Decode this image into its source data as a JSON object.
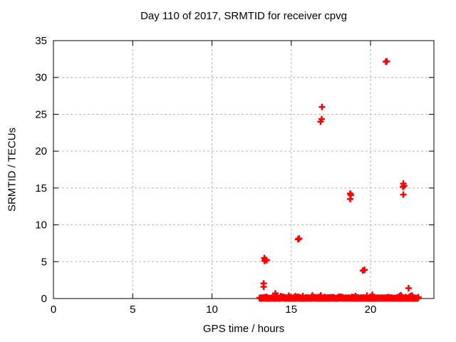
{
  "figure": {
    "background": "#ffffff"
  },
  "chart_data": {
    "type": "scatter",
    "title": "Day 110 of 2017, SRMTID for receiver cpvg",
    "xlabel": "GPS time / hours",
    "ylabel": "SRMTID / TECUs",
    "xlim": [
      0,
      24
    ],
    "ylim": [
      0,
      35
    ],
    "xticks": [
      0,
      5,
      10,
      15,
      20
    ],
    "yticks": [
      0,
      5,
      10,
      15,
      20,
      25,
      30,
      35
    ],
    "grid": true,
    "legend": "none",
    "colors": {
      "marker": "#ff0000",
      "grid": "#b4b4b4",
      "frame": "#000000",
      "text": "#000000"
    },
    "marker": {
      "shape": "plus",
      "size": 9,
      "stroke_width": 2.5
    },
    "points": [
      [
        13.3,
        5.5
      ],
      [
        13.35,
        5.3
      ],
      [
        13.45,
        5.2
      ],
      [
        13.32,
        5.1
      ],
      [
        13.26,
        2.05
      ],
      [
        13.26,
        1.6
      ],
      [
        14.0,
        0.7
      ],
      [
        15.43,
        8.05
      ],
      [
        15.5,
        8.15
      ],
      [
        16.94,
        26.0
      ],
      [
        16.85,
        24.0
      ],
      [
        16.92,
        24.35
      ],
      [
        18.72,
        14.25
      ],
      [
        18.76,
        14.05
      ],
      [
        18.72,
        13.5
      ],
      [
        19.52,
        3.8
      ],
      [
        19.62,
        3.9
      ],
      [
        20.97,
        32.15
      ],
      [
        21.03,
        32.2
      ],
      [
        22.07,
        15.6
      ],
      [
        22.12,
        15.3
      ],
      [
        22.05,
        15.15
      ],
      [
        22.07,
        14.1
      ],
      [
        22.4,
        1.4
      ]
    ],
    "baseline_band": {
      "description": "dense strip of measurements hugging zero",
      "x_start": 13.0,
      "x_end": 23.0,
      "y_min": 0.0,
      "y_typical_max": 0.25,
      "y_bump_max": 0.7,
      "count": 520,
      "seed": 42
    }
  }
}
